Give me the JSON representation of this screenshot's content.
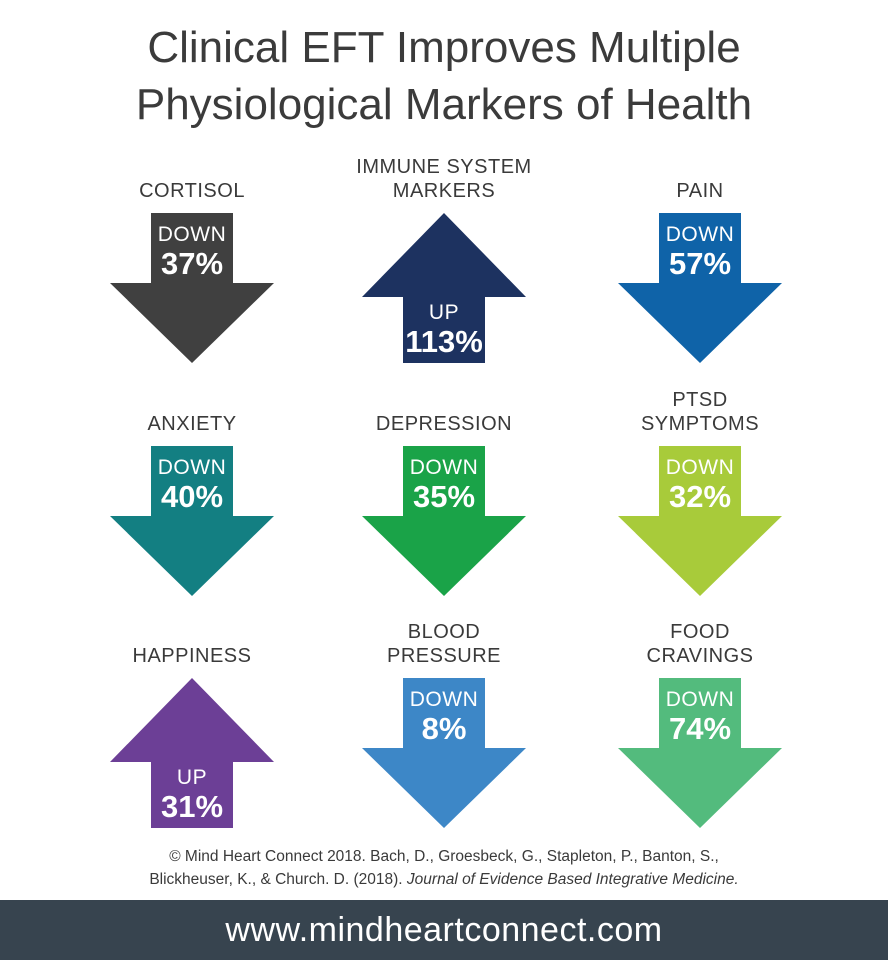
{
  "title": {
    "line1": "Clinical EFT Improves Multiple",
    "line2": "Physiological Markers of Health"
  },
  "markers": [
    {
      "label1": "",
      "label2": "CORTISOL",
      "direction": "DOWN",
      "percent": "37%",
      "color": "#404040"
    },
    {
      "label1": "IMMUNE SYSTEM",
      "label2": "MARKERS",
      "direction": "UP",
      "percent": "113%",
      "color": "#1d3260"
    },
    {
      "label1": "",
      "label2": "PAIN",
      "direction": "DOWN",
      "percent": "57%",
      "color": "#0f63a8"
    },
    {
      "label1": "",
      "label2": "ANXIETY",
      "direction": "DOWN",
      "percent": "40%",
      "color": "#137f82"
    },
    {
      "label1": "",
      "label2": "DEPRESSION",
      "direction": "DOWN",
      "percent": "35%",
      "color": "#1aa348"
    },
    {
      "label1": "PTSD",
      "label2": "SYMPTOMS",
      "direction": "DOWN",
      "percent": "32%",
      "color": "#a8cb3a"
    },
    {
      "label1": "",
      "label2": "HAPPINESS",
      "direction": "UP",
      "percent": "31%",
      "color": "#6c3f96"
    },
    {
      "label1": "BLOOD",
      "label2": "PRESSURE",
      "direction": "DOWN",
      "percent": "8%",
      "color": "#3d87c7"
    },
    {
      "label1": "FOOD",
      "label2": "CRAVINGS",
      "direction": "DOWN",
      "percent": "74%",
      "color": "#53bb7d"
    }
  ],
  "citation": {
    "line1": "© Mind Heart Connect 2018. Bach, D., Groesbeck, G., Stapleton, P., Banton, S.,",
    "line2_plain": "Blickheuser, K., & Church. D. (2018). ",
    "line2_italic": "Journal of Evidence Based Integrative Medicine."
  },
  "footer": {
    "url": "www.mindheartconnect.com",
    "background": "#37444f"
  }
}
